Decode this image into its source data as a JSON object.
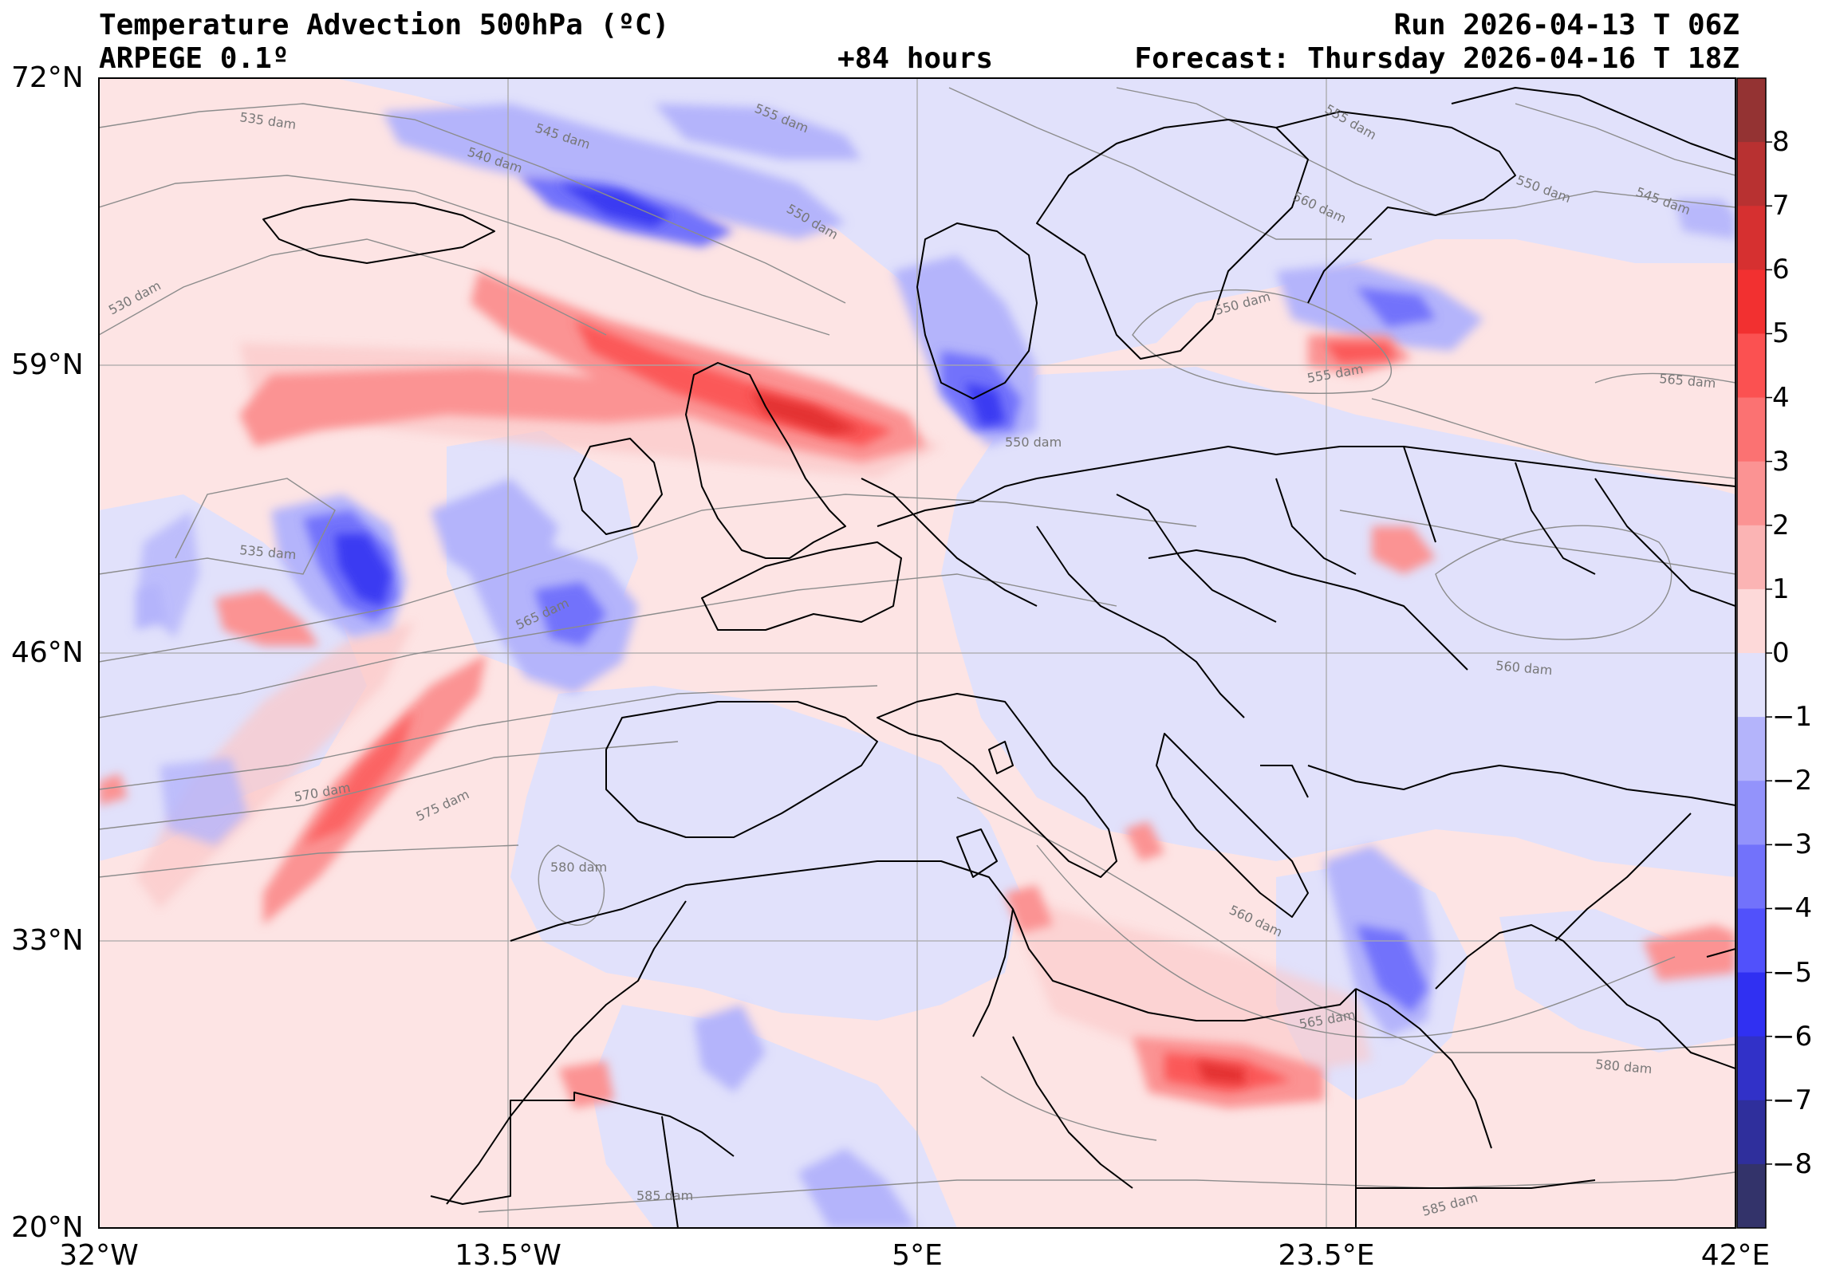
{
  "header": {
    "title": "Temperature Advection  500hPa (ºC)",
    "model": "ARPEGE 0.1º",
    "lead": "+84 hours",
    "run": "Run 2026-04-13 T 06Z",
    "forecast": "Forecast: Thursday 2026-04-16 T 18Z"
  },
  "axes": {
    "lat_labels": [
      "72°N",
      "59°N",
      "46°N",
      "33°N",
      "20°N"
    ],
    "lon_labels": [
      "32°W",
      "13.5°W",
      "5°E",
      "23.5°E",
      "42°E"
    ]
  },
  "colorbar": {
    "ticks": [
      "8",
      "7",
      "6",
      "5",
      "4",
      "3",
      "2",
      "1",
      "0",
      "−1",
      "−2",
      "−3",
      "−4",
      "−5",
      "−6",
      "−7",
      "−8"
    ],
    "colors": [
      "#943333",
      "#b83131",
      "#d63030",
      "#f23030",
      "#fb5151",
      "#fb7272",
      "#fb9393",
      "#fbb4b4",
      "#fdd9d9",
      "#e1e1fb",
      "#b4b4fb",
      "#9393fb",
      "#7272fb",
      "#5151fb",
      "#3030f2",
      "#3131c8",
      "#2f2f9c",
      "#33336a"
    ]
  },
  "contours": {
    "labels": [
      "535 dam",
      "545 dam",
      "540 dam",
      "555 dam",
      "550 dam",
      "560 dam",
      "550 dam",
      "545 dam",
      "530 dam",
      "550 dam",
      "555 dam",
      "565 dam",
      "535 dam",
      "565 dam",
      "555 dam",
      "560 dam",
      "570 dam",
      "575 dam",
      "580 dam",
      "560 dam",
      "565 dam",
      "580 dam",
      "585 dam",
      "585 dam",
      "550 dam"
    ]
  }
}
